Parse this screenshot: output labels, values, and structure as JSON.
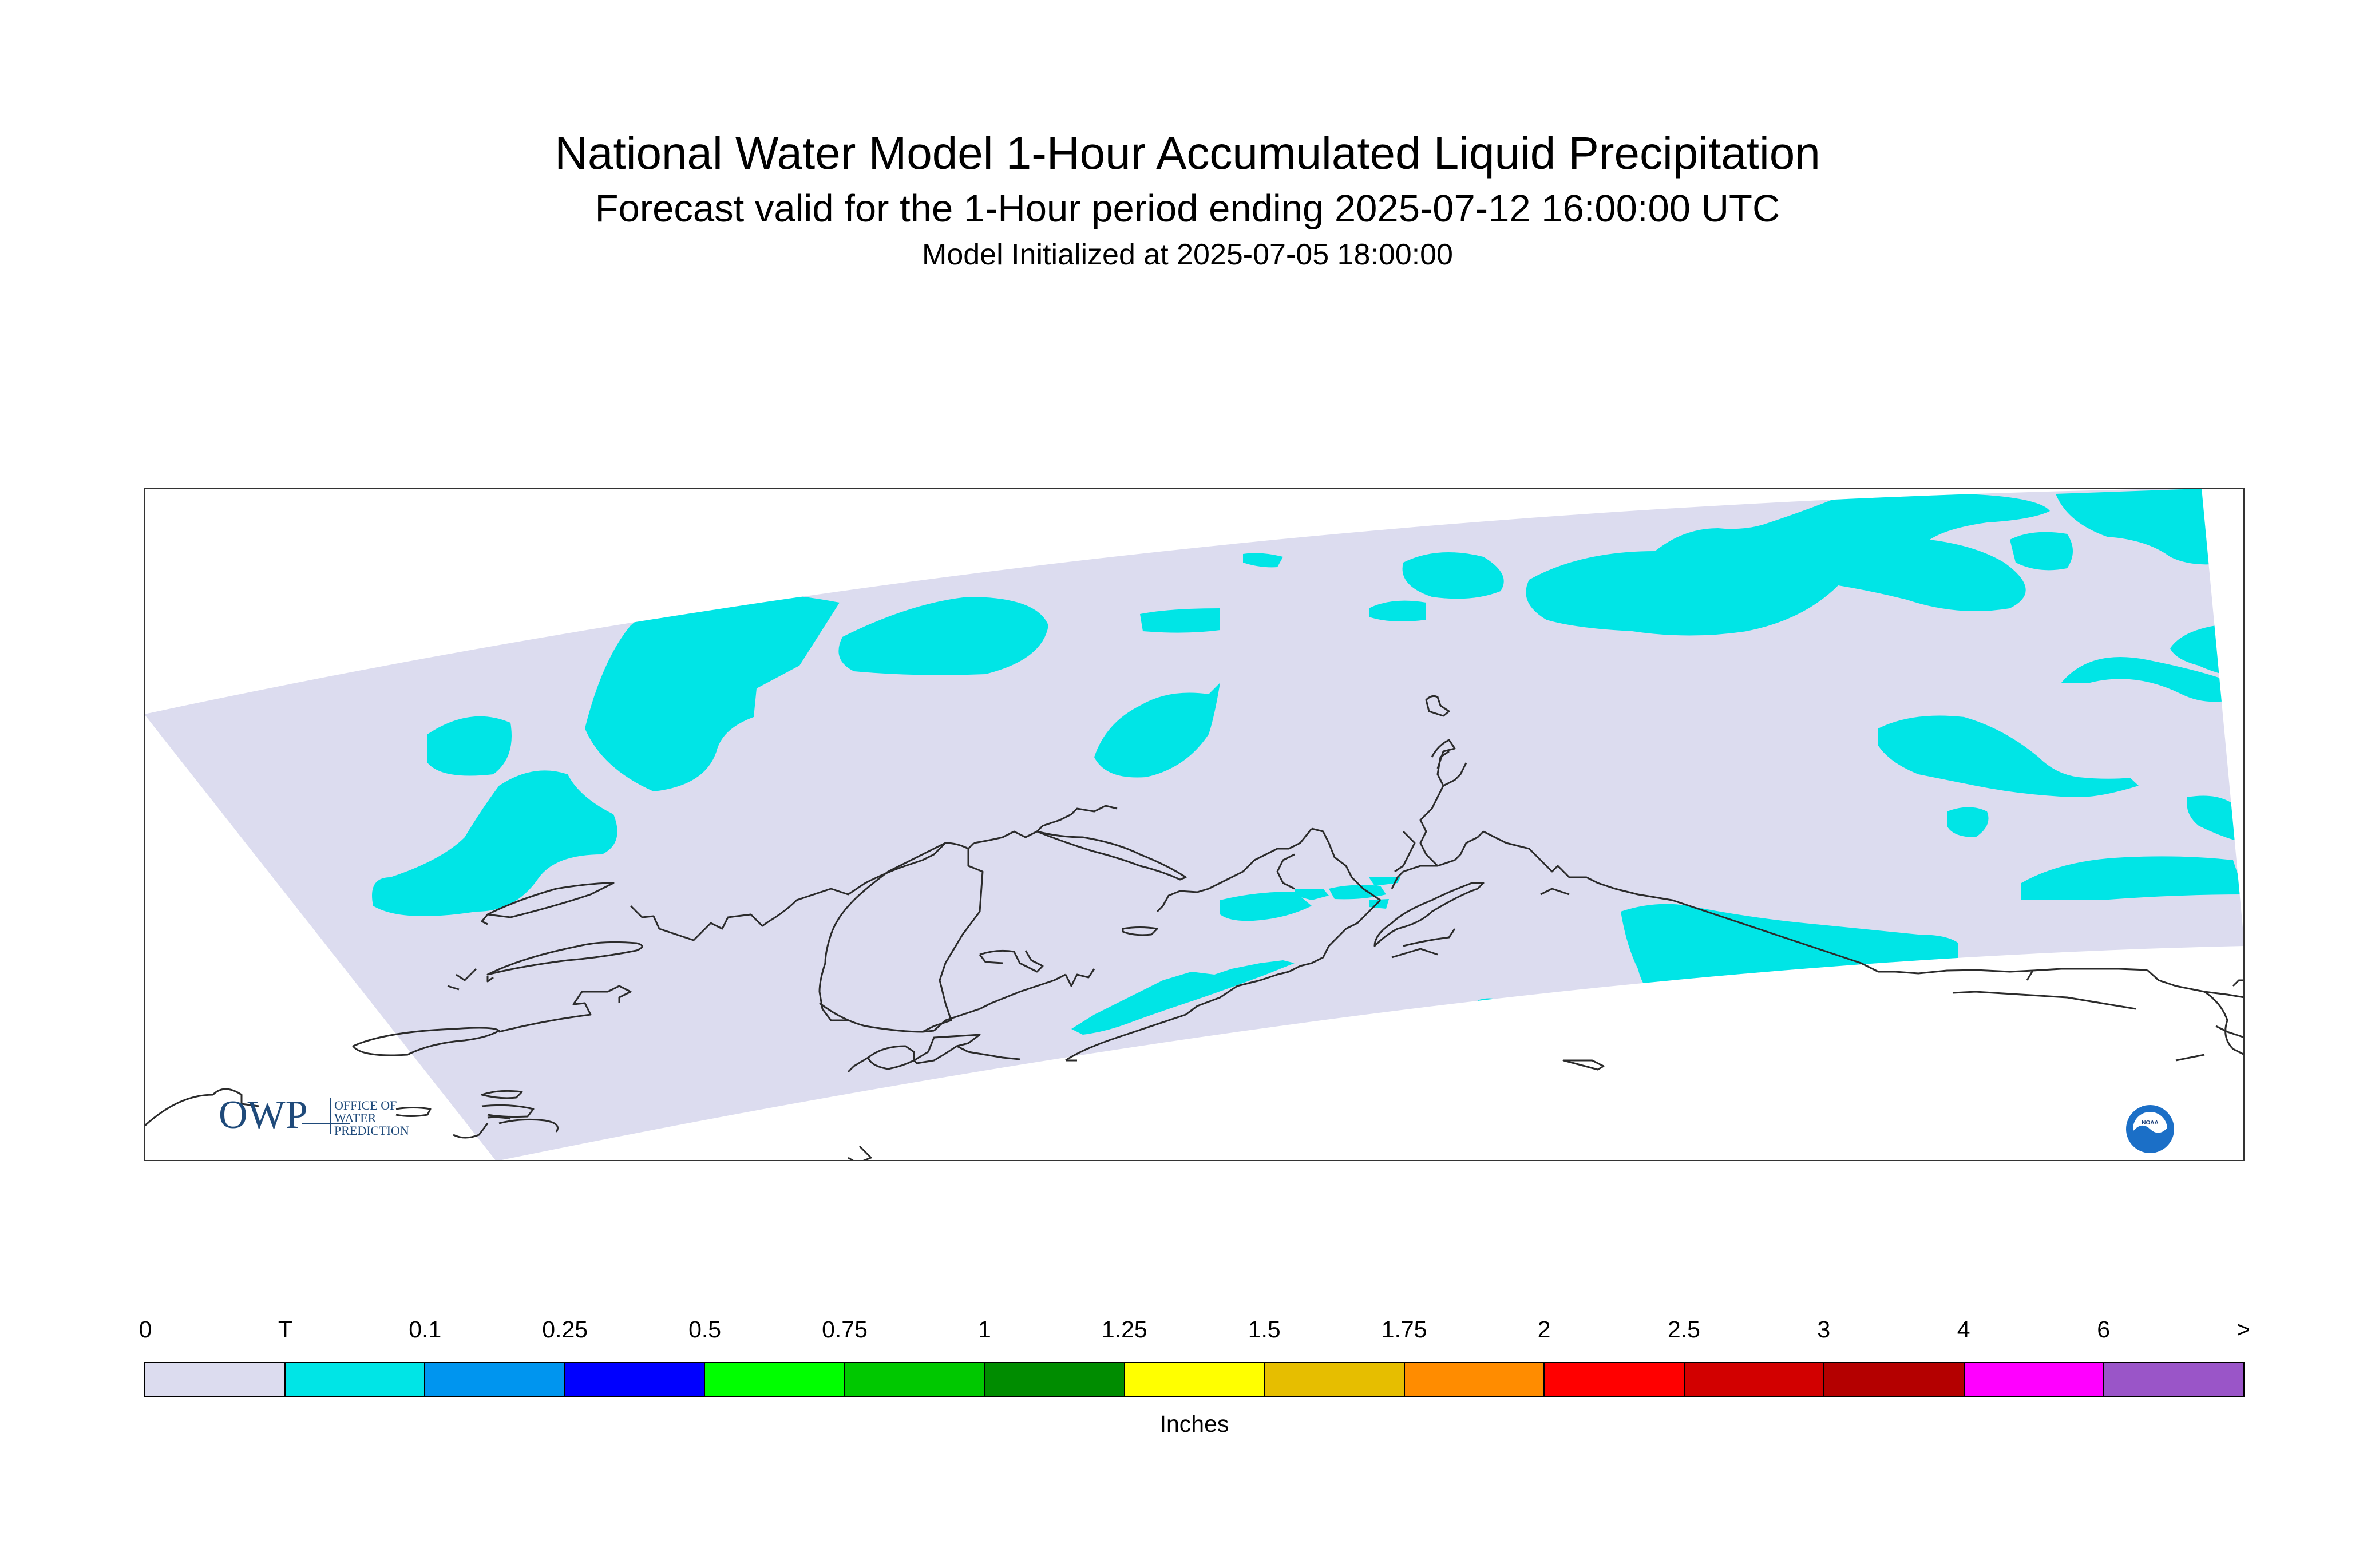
{
  "title": "National Water Model 1-Hour Accumulated Liquid Precipitation",
  "subtitle": "Forecast valid for the 1-Hour period ending 2025-07-12 16:00:00 UTC",
  "init_line": "Model Initialized at 2025-07-05 18:00:00",
  "logos": {
    "owp_mark": "OWP",
    "owp_text": [
      "OFFICE OF",
      "WATER",
      "PREDICTION"
    ],
    "noaa_text": "NOAA"
  },
  "map": {
    "background_color": "#dcdcef",
    "precip_color": "#00e5e6",
    "coastline_color": "#2b2b2b"
  },
  "legend": {
    "ticks": [
      "0",
      "T",
      "0.1",
      "0.25",
      "0.5",
      "0.75",
      "1",
      "1.25",
      "1.5",
      "1.75",
      "2",
      "2.5",
      "3",
      "4",
      "6",
      ">"
    ],
    "colors": [
      "#dcdcef",
      "#00e5e6",
      "#0095ef",
      "#0000ff",
      "#00ff00",
      "#00c800",
      "#008c00",
      "#ffff00",
      "#e6be00",
      "#ff8c00",
      "#ff0000",
      "#d20000",
      "#b40000",
      "#ff00ff",
      "#9a55c8"
    ],
    "units": "Inches"
  }
}
